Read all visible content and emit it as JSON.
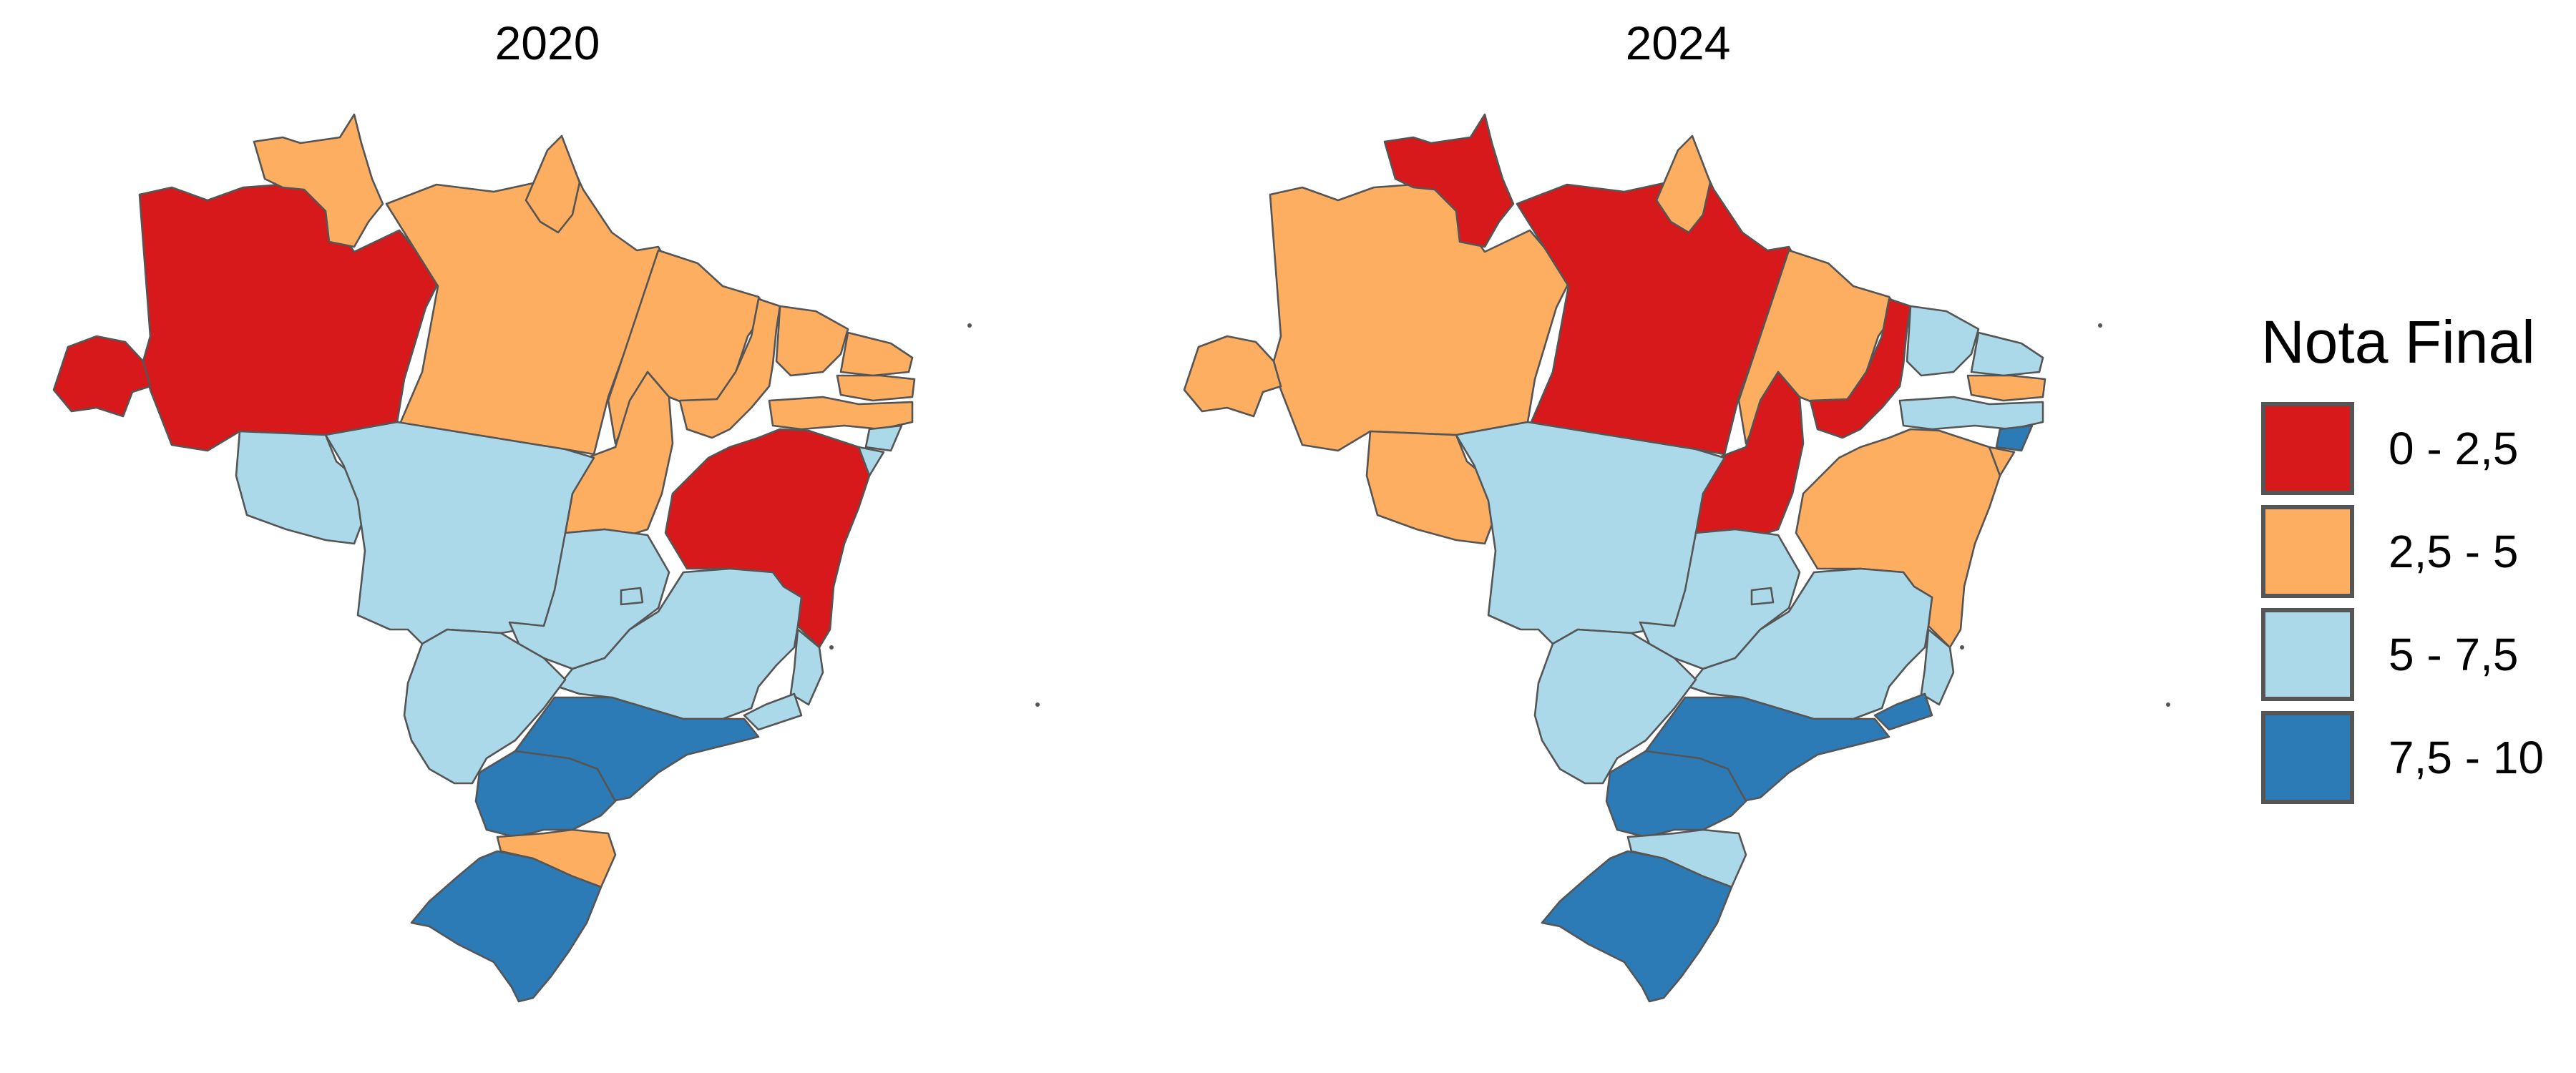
{
  "figure": {
    "panels": [
      {
        "title": "2020"
      },
      {
        "title": "2024"
      }
    ],
    "legend": {
      "title": "Nota Final",
      "classes": [
        {
          "label": "0 - 2,5",
          "color": "#d7191c"
        },
        {
          "label": "2,5 - 5",
          "color": "#fdae61"
        },
        {
          "label": "5 - 7,5",
          "color": "#abd9e9"
        },
        {
          "label": "7,5 - 10",
          "color": "#2c7bb6"
        }
      ]
    }
  },
  "map_data": {
    "class_by_year": {
      "2020": {
        "AC": 0,
        "AM": 0,
        "RR": 1,
        "PA": 1,
        "AP": 1,
        "MA": 1,
        "PI": 1,
        "CE": 1,
        "RN": 1,
        "PB": 1,
        "PE": 1,
        "AL": 2,
        "SE": 2,
        "BA": 0,
        "TO": 1,
        "RO": 2,
        "MT": 2,
        "GO": 2,
        "DF": 2,
        "MG": 2,
        "ES": 2,
        "MS": 2,
        "RJ": 2,
        "SP": 3,
        "PR": 3,
        "SC": 1,
        "RS": 3
      },
      "2024": {
        "AC": 1,
        "AM": 1,
        "RR": 0,
        "PA": 0,
        "AP": 1,
        "MA": 1,
        "PI": 0,
        "CE": 2,
        "RN": 2,
        "PB": 1,
        "PE": 2,
        "AL": 3,
        "SE": 1,
        "BA": 1,
        "TO": 0,
        "RO": 1,
        "MT": 2,
        "GO": 2,
        "DF": 2,
        "MG": 2,
        "ES": 2,
        "MS": 2,
        "RJ": 3,
        "SP": 3,
        "PR": 3,
        "SC": 2,
        "RS": 3
      }
    }
  }
}
